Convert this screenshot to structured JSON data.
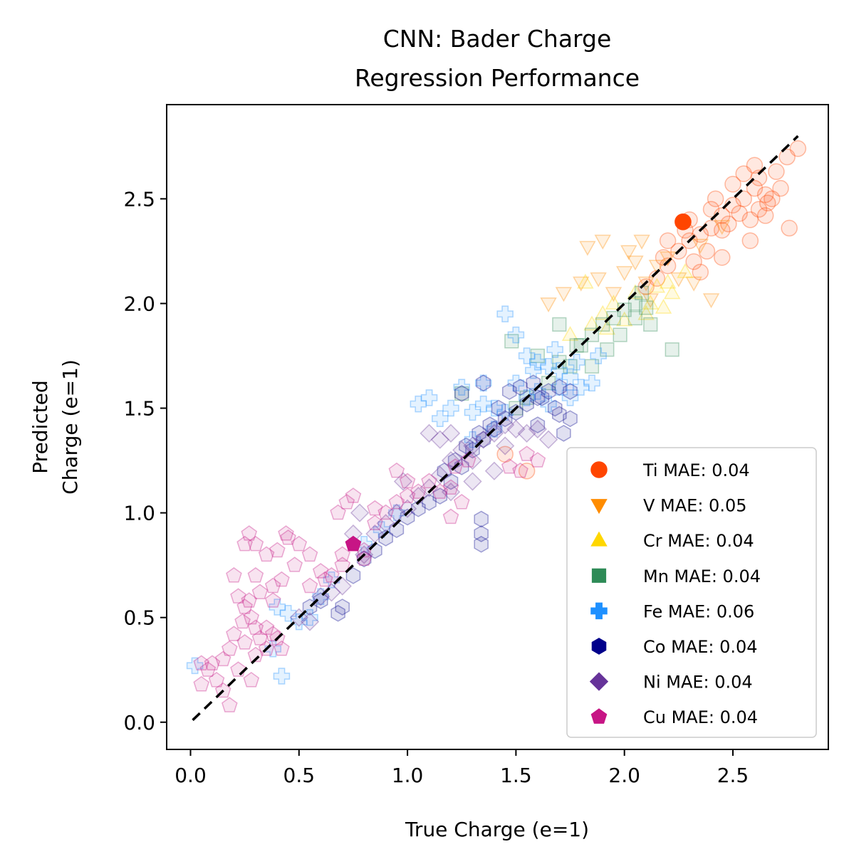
{
  "chart_data": {
    "type": "scatter",
    "title": [
      "CNN: Bader Charge",
      "Regression Performance"
    ],
    "xlabel": "True Charge (e=1)",
    "ylabel": [
      "Predicted",
      "Charge (e=1)"
    ],
    "xlim": [
      -0.11,
      2.94
    ],
    "ylim": [
      -0.13,
      2.95
    ],
    "xticks": [
      0.0,
      0.5,
      1.0,
      1.5,
      2.0,
      2.5
    ],
    "yticks": [
      0.0,
      0.5,
      1.0,
      1.5,
      2.0,
      2.5
    ],
    "xtick_labels": [
      "0.0",
      "0.5",
      "1.0",
      "1.5",
      "2.0",
      "2.5"
    ],
    "ytick_labels": [
      "0.0",
      "0.5",
      "1.0",
      "1.5",
      "2.0",
      "2.5"
    ],
    "grid": false,
    "legend_position": "lower-right",
    "reference_line": {
      "x": [
        0.01,
        2.8
      ],
      "y": [
        0.01,
        2.8
      ],
      "style": "dashed",
      "color": "#000000"
    },
    "series": [
      {
        "name": "Ti MAE: 0.04",
        "marker": "circle",
        "color": "#FF4500",
        "points": [
          [
            2.27,
            2.39
          ],
          [
            2.3,
            2.3
          ],
          [
            2.35,
            2.33
          ],
          [
            2.4,
            2.36
          ],
          [
            2.45,
            2.42
          ],
          [
            2.5,
            2.47
          ],
          [
            2.55,
            2.5
          ],
          [
            2.6,
            2.55
          ],
          [
            2.62,
            2.6
          ],
          [
            2.65,
            2.52
          ],
          [
            2.62,
            2.45
          ],
          [
            2.58,
            2.4
          ],
          [
            2.66,
            2.48
          ],
          [
            2.7,
            2.63
          ],
          [
            2.75,
            2.7
          ],
          [
            2.8,
            2.74
          ],
          [
            2.76,
            2.36
          ],
          [
            2.68,
            2.5
          ],
          [
            2.55,
            2.62
          ],
          [
            2.5,
            2.57
          ],
          [
            2.45,
            2.35
          ],
          [
            2.38,
            2.25
          ],
          [
            2.32,
            2.2
          ],
          [
            2.25,
            2.25
          ],
          [
            2.2,
            2.18
          ],
          [
            2.15,
            2.12
          ],
          [
            2.2,
            2.3
          ],
          [
            2.3,
            2.4
          ],
          [
            2.4,
            2.45
          ],
          [
            2.48,
            2.38
          ],
          [
            2.53,
            2.43
          ],
          [
            2.6,
            2.66
          ],
          [
            2.35,
            2.15
          ],
          [
            2.45,
            2.22
          ],
          [
            2.65,
            2.42
          ],
          [
            2.72,
            2.55
          ],
          [
            2.58,
            2.3
          ],
          [
            2.42,
            2.5
          ],
          [
            2.28,
            2.35
          ],
          [
            2.18,
            2.22
          ],
          [
            2.1,
            2.08
          ],
          [
            1.55,
            1.2
          ],
          [
            1.45,
            1.28
          ]
        ]
      },
      {
        "name": "V MAE: 0.05",
        "marker": "triangle-down",
        "color": "#FF8C00",
        "points": [
          [
            1.9,
            2.3
          ],
          [
            1.83,
            2.27
          ],
          [
            2.0,
            2.15
          ],
          [
            2.1,
            2.1
          ],
          [
            2.2,
            2.22
          ],
          [
            2.15,
            2.18
          ],
          [
            1.65,
            2.0
          ],
          [
            1.72,
            2.05
          ],
          [
            1.8,
            2.1
          ],
          [
            2.05,
            2.2
          ],
          [
            2.12,
            2.02
          ],
          [
            2.25,
            2.12
          ],
          [
            2.35,
            2.28
          ],
          [
            2.45,
            2.37
          ],
          [
            2.4,
            2.02
          ],
          [
            2.32,
            2.1
          ],
          [
            1.95,
            2.05
          ],
          [
            1.88,
            2.12
          ],
          [
            2.02,
            2.25
          ],
          [
            2.08,
            2.3
          ]
        ]
      },
      {
        "name": "Cr MAE: 0.04",
        "marker": "triangle-up",
        "color": "#FFD700",
        "points": [
          [
            1.82,
            2.1
          ],
          [
            1.9,
            1.95
          ],
          [
            1.95,
            2.0
          ],
          [
            2.05,
            2.05
          ],
          [
            2.12,
            2.0
          ],
          [
            2.18,
            1.98
          ],
          [
            2.22,
            2.05
          ],
          [
            1.75,
            1.85
          ],
          [
            1.85,
            1.9
          ],
          [
            2.0,
            1.92
          ],
          [
            2.1,
            1.95
          ],
          [
            2.2,
            2.1
          ],
          [
            2.28,
            2.15
          ],
          [
            1.92,
            1.88
          ],
          [
            2.15,
            2.08
          ]
        ]
      },
      {
        "name": "Mn MAE: 0.04",
        "marker": "square",
        "color": "#2E8B57",
        "points": [
          [
            1.6,
            1.75
          ],
          [
            1.7,
            1.72
          ],
          [
            1.8,
            1.8
          ],
          [
            1.85,
            1.85
          ],
          [
            1.9,
            1.9
          ],
          [
            1.95,
            1.93
          ],
          [
            2.0,
            1.97
          ],
          [
            2.05,
            2.0
          ],
          [
            2.1,
            1.98
          ],
          [
            2.22,
            1.78
          ],
          [
            2.12,
            1.9
          ],
          [
            1.75,
            1.7
          ],
          [
            1.65,
            1.62
          ],
          [
            1.55,
            1.55
          ],
          [
            1.5,
            1.5
          ],
          [
            1.85,
            1.7
          ],
          [
            1.92,
            1.78
          ],
          [
            1.98,
            1.85
          ],
          [
            2.05,
            1.93
          ],
          [
            1.78,
            1.8
          ],
          [
            1.25,
            1.57
          ],
          [
            1.48,
            1.82
          ],
          [
            1.7,
            1.9
          ],
          [
            2.08,
            2.05
          ]
        ]
      },
      {
        "name": "Fe MAE: 0.06",
        "marker": "plus",
        "color": "#1E90FF",
        "points": [
          [
            1.45,
            1.95
          ],
          [
            1.5,
            1.85
          ],
          [
            1.55,
            1.75
          ],
          [
            1.6,
            1.72
          ],
          [
            1.65,
            1.7
          ],
          [
            1.7,
            1.68
          ],
          [
            1.75,
            1.65
          ],
          [
            1.8,
            1.6
          ],
          [
            1.85,
            1.62
          ],
          [
            1.1,
            1.55
          ],
          [
            1.05,
            1.52
          ],
          [
            1.2,
            1.5
          ],
          [
            1.15,
            1.45
          ],
          [
            1.3,
            1.48
          ],
          [
            1.35,
            1.52
          ],
          [
            1.4,
            1.5
          ],
          [
            1.45,
            1.48
          ],
          [
            1.55,
            1.55
          ],
          [
            1.6,
            1.58
          ],
          [
            1.7,
            1.6
          ],
          [
            1.75,
            1.55
          ],
          [
            1.65,
            1.52
          ],
          [
            1.5,
            1.62
          ],
          [
            0.4,
            0.55
          ],
          [
            0.45,
            0.52
          ],
          [
            0.5,
            0.48
          ],
          [
            0.55,
            0.5
          ],
          [
            0.02,
            0.27
          ],
          [
            0.42,
            0.22
          ],
          [
            0.38,
            0.35
          ],
          [
            1.25,
            1.6
          ],
          [
            1.35,
            1.62
          ],
          [
            1.58,
            1.68
          ],
          [
            1.68,
            1.78
          ],
          [
            1.78,
            1.72
          ],
          [
            1.88,
            1.75
          ],
          [
            1.4,
            1.4
          ],
          [
            1.3,
            1.35
          ],
          [
            0.95,
            1.0
          ],
          [
            0.88,
            0.92
          ],
          [
            0.8,
            0.85
          ],
          [
            0.6,
            0.6
          ],
          [
            0.65,
            0.68
          ]
        ]
      },
      {
        "name": "Co MAE: 0.04",
        "marker": "hexagon",
        "color": "#00008B",
        "points": [
          [
            0.7,
            0.55
          ],
          [
            0.68,
            0.52
          ],
          [
            0.75,
            0.7
          ],
          [
            0.8,
            0.78
          ],
          [
            0.9,
            0.88
          ],
          [
            1.0,
            0.98
          ],
          [
            1.1,
            1.05
          ],
          [
            1.2,
            1.15
          ],
          [
            1.25,
            1.22
          ],
          [
            1.3,
            1.3
          ],
          [
            1.35,
            1.35
          ],
          [
            1.4,
            1.4
          ],
          [
            1.45,
            1.45
          ],
          [
            1.5,
            1.48
          ],
          [
            1.55,
            1.52
          ],
          [
            1.6,
            1.55
          ],
          [
            1.65,
            1.58
          ],
          [
            1.7,
            1.6
          ],
          [
            1.75,
            1.58
          ],
          [
            1.68,
            1.5
          ],
          [
            1.62,
            1.55
          ],
          [
            1.58,
            1.62
          ],
          [
            1.52,
            1.6
          ],
          [
            1.47,
            1.58
          ],
          [
            1.42,
            1.5
          ],
          [
            1.38,
            1.42
          ],
          [
            1.33,
            1.38
          ],
          [
            1.27,
            1.32
          ],
          [
            1.22,
            1.25
          ],
          [
            1.17,
            1.2
          ],
          [
            1.25,
            1.57
          ],
          [
            1.35,
            1.62
          ],
          [
            1.34,
            0.85
          ],
          [
            1.34,
            0.9
          ],
          [
            1.34,
            0.97
          ],
          [
            1.15,
            1.08
          ],
          [
            0.6,
            0.58
          ],
          [
            0.55,
            0.55
          ],
          [
            0.85,
            0.82
          ],
          [
            0.95,
            0.92
          ],
          [
            1.05,
            1.02
          ],
          [
            1.7,
            1.47
          ],
          [
            1.75,
            1.45
          ],
          [
            1.72,
            1.38
          ],
          [
            1.6,
            1.42
          ]
        ]
      },
      {
        "name": "Ni MAE: 0.04",
        "marker": "diamond",
        "color": "#663399",
        "points": [
          [
            0.6,
            0.6
          ],
          [
            0.65,
            0.62
          ],
          [
            0.7,
            0.65
          ],
          [
            0.8,
            0.8
          ],
          [
            0.85,
            0.9
          ],
          [
            0.9,
            0.95
          ],
          [
            0.95,
            1.0
          ],
          [
            1.0,
            1.02
          ],
          [
            1.05,
            1.08
          ],
          [
            1.1,
            1.12
          ],
          [
            1.15,
            1.18
          ],
          [
            1.2,
            1.25
          ],
          [
            1.25,
            1.3
          ],
          [
            1.3,
            1.32
          ],
          [
            1.35,
            1.35
          ],
          [
            1.4,
            1.38
          ],
          [
            1.45,
            1.42
          ],
          [
            1.5,
            1.4
          ],
          [
            1.55,
            1.38
          ],
          [
            1.6,
            1.4
          ],
          [
            1.65,
            1.35
          ],
          [
            1.4,
            1.2
          ],
          [
            1.3,
            1.15
          ],
          [
            1.1,
            1.38
          ],
          [
            1.15,
            1.35
          ],
          [
            1.2,
            1.38
          ],
          [
            0.75,
            0.9
          ],
          [
            0.78,
            1.0
          ],
          [
            0.98,
            1.15
          ],
          [
            1.2,
            1.1
          ],
          [
            1.3,
            1.25
          ],
          [
            1.45,
            1.32
          ],
          [
            0.5,
            0.5
          ],
          [
            0.55,
            0.48
          ]
        ]
      },
      {
        "name": "Cu MAE: 0.04",
        "marker": "pentagon",
        "color": "#C71585",
        "points": [
          [
            0.75,
            0.85
          ],
          [
            0.8,
            0.82
          ],
          [
            0.85,
            0.95
          ],
          [
            0.9,
            1.0
          ],
          [
            0.95,
            1.05
          ],
          [
            1.0,
            1.08
          ],
          [
            1.05,
            1.1
          ],
          [
            1.1,
            1.15
          ],
          [
            1.15,
            1.1
          ],
          [
            1.2,
            1.12
          ],
          [
            1.25,
            1.05
          ],
          [
            1.2,
            0.98
          ],
          [
            1.0,
            1.15
          ],
          [
            0.95,
            1.2
          ],
          [
            0.85,
            1.02
          ],
          [
            0.8,
            0.78
          ],
          [
            0.7,
            0.75
          ],
          [
            0.65,
            0.7
          ],
          [
            0.6,
            0.72
          ],
          [
            0.55,
            0.8
          ],
          [
            0.5,
            0.85
          ],
          [
            0.45,
            0.88
          ],
          [
            0.44,
            0.9
          ],
          [
            0.4,
            0.82
          ],
          [
            0.35,
            0.8
          ],
          [
            0.3,
            0.85
          ],
          [
            0.25,
            0.85
          ],
          [
            0.27,
            0.9
          ],
          [
            0.2,
            0.7
          ],
          [
            0.22,
            0.6
          ],
          [
            0.25,
            0.55
          ],
          [
            0.28,
            0.5
          ],
          [
            0.3,
            0.45
          ],
          [
            0.32,
            0.4
          ],
          [
            0.35,
            0.45
          ],
          [
            0.38,
            0.42
          ],
          [
            0.4,
            0.4
          ],
          [
            0.42,
            0.35
          ],
          [
            0.35,
            0.35
          ],
          [
            0.3,
            0.32
          ],
          [
            0.25,
            0.38
          ],
          [
            0.2,
            0.42
          ],
          [
            0.18,
            0.35
          ],
          [
            0.15,
            0.3
          ],
          [
            0.1,
            0.28
          ],
          [
            0.08,
            0.25
          ],
          [
            0.05,
            0.28
          ],
          [
            0.12,
            0.2
          ],
          [
            0.18,
            0.08
          ],
          [
            0.15,
            0.15
          ],
          [
            0.05,
            0.18
          ],
          [
            0.22,
            0.25
          ],
          [
            0.28,
            0.2
          ],
          [
            0.32,
            0.62
          ],
          [
            0.38,
            0.58
          ],
          [
            0.42,
            0.68
          ],
          [
            0.48,
            0.75
          ],
          [
            0.55,
            0.65
          ],
          [
            0.62,
            0.68
          ],
          [
            0.7,
            0.8
          ],
          [
            0.72,
            1.05
          ],
          [
            0.68,
            1.0
          ],
          [
            0.75,
            1.08
          ],
          [
            1.22,
            1.22
          ],
          [
            1.28,
            1.25
          ],
          [
            1.52,
            1.2
          ],
          [
            1.55,
            1.28
          ],
          [
            1.6,
            1.25
          ],
          [
            1.47,
            1.22
          ],
          [
            0.38,
            0.65
          ],
          [
            0.3,
            0.7
          ],
          [
            0.27,
            0.58
          ],
          [
            0.24,
            0.48
          ]
        ]
      }
    ]
  }
}
